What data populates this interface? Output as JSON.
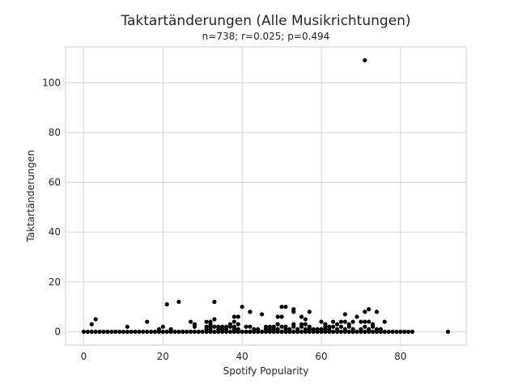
{
  "chart_data": {
    "type": "scatter",
    "title": "Taktartänderungen (Alle Musikrichtungen)",
    "subtitle": "n=738; r=0.025; p=0.494",
    "xlabel": "Spotify Popularity",
    "ylabel": "Taktartänderungen",
    "xlim": [
      -4.6,
      96.6
    ],
    "ylim": [
      -5.4,
      114.4
    ],
    "xticks": [
      0,
      20,
      40,
      60,
      80
    ],
    "yticks": [
      0,
      20,
      40,
      60,
      80,
      100
    ],
    "grid": true,
    "marker_color": "#000000",
    "points": [
      [
        0,
        0
      ],
      [
        1,
        0
      ],
      [
        2,
        0
      ],
      [
        3,
        0
      ],
      [
        4,
        0
      ],
      [
        5,
        0
      ],
      [
        6,
        0
      ],
      [
        7,
        0
      ],
      [
        8,
        0
      ],
      [
        9,
        0
      ],
      [
        10,
        0
      ],
      [
        11,
        0
      ],
      [
        12,
        0
      ],
      [
        13,
        0
      ],
      [
        14,
        0
      ],
      [
        15,
        0
      ],
      [
        16,
        0
      ],
      [
        17,
        0
      ],
      [
        18,
        0
      ],
      [
        19,
        0
      ],
      [
        20,
        0
      ],
      [
        21,
        0
      ],
      [
        22,
        0
      ],
      [
        23,
        0
      ],
      [
        24,
        0
      ],
      [
        25,
        0
      ],
      [
        26,
        0
      ],
      [
        27,
        0
      ],
      [
        28,
        0
      ],
      [
        29,
        0
      ],
      [
        30,
        0
      ],
      [
        31,
        0
      ],
      [
        32,
        0
      ],
      [
        33,
        0
      ],
      [
        34,
        0
      ],
      [
        35,
        0
      ],
      [
        36,
        0
      ],
      [
        37,
        0
      ],
      [
        38,
        0
      ],
      [
        39,
        0
      ],
      [
        40,
        0
      ],
      [
        41,
        0
      ],
      [
        42,
        0
      ],
      [
        43,
        0
      ],
      [
        44,
        0
      ],
      [
        45,
        0
      ],
      [
        46,
        0
      ],
      [
        47,
        0
      ],
      [
        48,
        0
      ],
      [
        49,
        0
      ],
      [
        50,
        0
      ],
      [
        51,
        0
      ],
      [
        52,
        0
      ],
      [
        53,
        0
      ],
      [
        54,
        0
      ],
      [
        55,
        0
      ],
      [
        56,
        0
      ],
      [
        57,
        0
      ],
      [
        58,
        0
      ],
      [
        59,
        0
      ],
      [
        60,
        0
      ],
      [
        61,
        0
      ],
      [
        62,
        0
      ],
      [
        63,
        0
      ],
      [
        64,
        0
      ],
      [
        65,
        0
      ],
      [
        66,
        0
      ],
      [
        67,
        0
      ],
      [
        68,
        0
      ],
      [
        69,
        0
      ],
      [
        70,
        0
      ],
      [
        71,
        0
      ],
      [
        72,
        0
      ],
      [
        73,
        0
      ],
      [
        74,
        0
      ],
      [
        75,
        0
      ],
      [
        76,
        0
      ],
      [
        77,
        0
      ],
      [
        78,
        0
      ],
      [
        79,
        0
      ],
      [
        80,
        0
      ],
      [
        81,
        0
      ],
      [
        82,
        0
      ],
      [
        83,
        0
      ],
      [
        92,
        0
      ],
      [
        2,
        3
      ],
      [
        3,
        5
      ],
      [
        11,
        2
      ],
      [
        16,
        4
      ],
      [
        19,
        1
      ],
      [
        20,
        2
      ],
      [
        21,
        11
      ],
      [
        22,
        1
      ],
      [
        24,
        12
      ],
      [
        27,
        4
      ],
      [
        28,
        2
      ],
      [
        28,
        3
      ],
      [
        31,
        1
      ],
      [
        31,
        2
      ],
      [
        31,
        4
      ],
      [
        32,
        1
      ],
      [
        32,
        2
      ],
      [
        32,
        3
      ],
      [
        32,
        4
      ],
      [
        33,
        12
      ],
      [
        33,
        5
      ],
      [
        33,
        2
      ],
      [
        34,
        1
      ],
      [
        34,
        2
      ],
      [
        35,
        1
      ],
      [
        35,
        2
      ],
      [
        36,
        1
      ],
      [
        36,
        2
      ],
      [
        37,
        2
      ],
      [
        37,
        3
      ],
      [
        38,
        4
      ],
      [
        38,
        6
      ],
      [
        38,
        2
      ],
      [
        38,
        1
      ],
      [
        39,
        6
      ],
      [
        39,
        3
      ],
      [
        39,
        1
      ],
      [
        40,
        10
      ],
      [
        41,
        2
      ],
      [
        42,
        8
      ],
      [
        42,
        2
      ],
      [
        43,
        1
      ],
      [
        44,
        1
      ],
      [
        45,
        7
      ],
      [
        46,
        1
      ],
      [
        46,
        2
      ],
      [
        47,
        1
      ],
      [
        47,
        2
      ],
      [
        48,
        1
      ],
      [
        48,
        2
      ],
      [
        49,
        3
      ],
      [
        49,
        6
      ],
      [
        49,
        1
      ],
      [
        50,
        2
      ],
      [
        50,
        6
      ],
      [
        50,
        10
      ],
      [
        51,
        1
      ],
      [
        51,
        10
      ],
      [
        51,
        2
      ],
      [
        52,
        1
      ],
      [
        53,
        3
      ],
      [
        53,
        8
      ],
      [
        53,
        9
      ],
      [
        53,
        2
      ],
      [
        54,
        1
      ],
      [
        55,
        6
      ],
      [
        55,
        3
      ],
      [
        55,
        2
      ],
      [
        56,
        1
      ],
      [
        56,
        5
      ],
      [
        56,
        3
      ],
      [
        57,
        8
      ],
      [
        57,
        2
      ],
      [
        57,
        1
      ],
      [
        58,
        1
      ],
      [
        59,
        1
      ],
      [
        60,
        1
      ],
      [
        60,
        4
      ],
      [
        61,
        1
      ],
      [
        61,
        2
      ],
      [
        61,
        3
      ],
      [
        62,
        2
      ],
      [
        62,
        1
      ],
      [
        63,
        4
      ],
      [
        63,
        2
      ],
      [
        64,
        1
      ],
      [
        64,
        3
      ],
      [
        65,
        4
      ],
      [
        65,
        2
      ],
      [
        66,
        4
      ],
      [
        66,
        7
      ],
      [
        66,
        1
      ],
      [
        67,
        3
      ],
      [
        67,
        2
      ],
      [
        68,
        4
      ],
      [
        68,
        1
      ],
      [
        69,
        6
      ],
      [
        70,
        4
      ],
      [
        70,
        1
      ],
      [
        71,
        109
      ],
      [
        71,
        2
      ],
      [
        71,
        4
      ],
      [
        71,
        8
      ],
      [
        72,
        9
      ],
      [
        72,
        4
      ],
      [
        72,
        1
      ],
      [
        73,
        3
      ],
      [
        73,
        2
      ],
      [
        74,
        8
      ],
      [
        74,
        1
      ],
      [
        75,
        1
      ],
      [
        76,
        4
      ]
    ]
  }
}
